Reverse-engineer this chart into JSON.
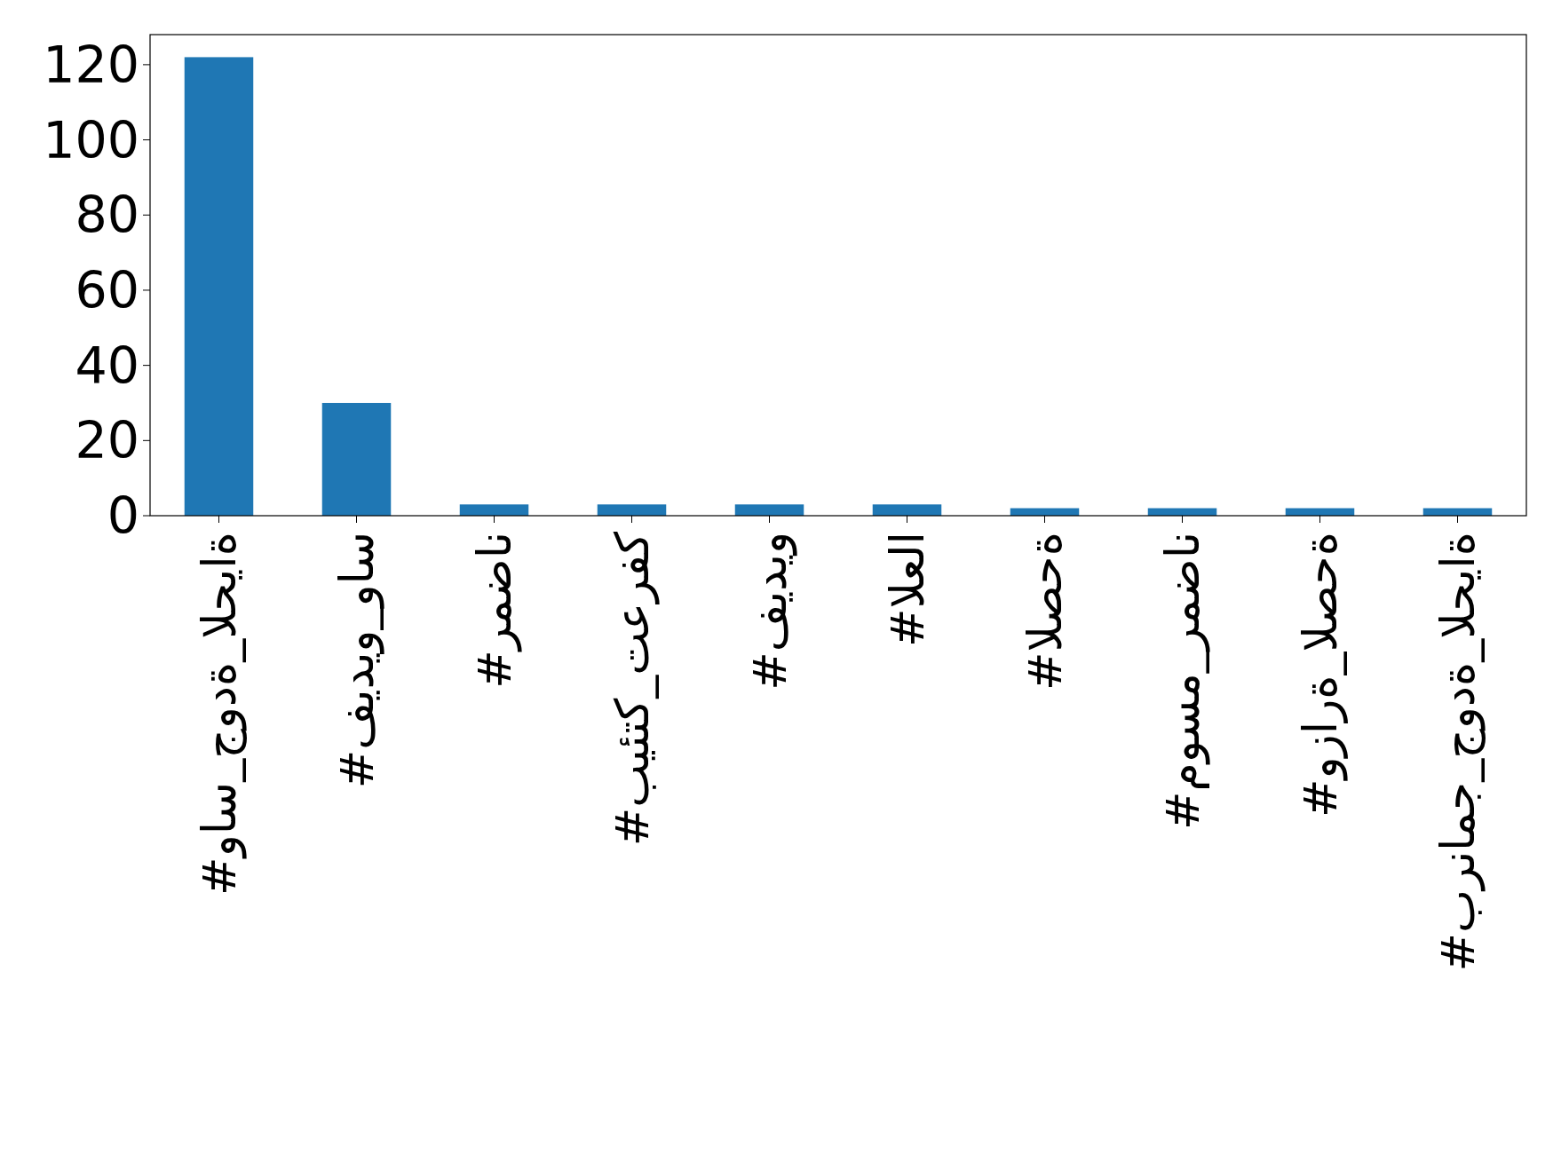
{
  "chart_data": {
    "type": "bar",
    "categories": [
      "#واس_جودة_الحياة",
      "#فيديو_واس",
      "#رمضان",
      "#بيئتك_تعرفك",
      "#فيديو",
      "#العلا",
      "#الصحة",
      "#موسم_رمضان",
      "#وزارة_الصحة",
      "#برنامج_جودة_الحياة"
    ],
    "values": [
      122,
      30,
      3,
      3,
      3,
      3,
      2,
      2,
      2,
      2
    ],
    "color": "#1f77b4",
    "ylim": [
      0,
      128
    ],
    "yticks": [
      0,
      20,
      40,
      60,
      80,
      100,
      120
    ],
    "grid": false
  }
}
